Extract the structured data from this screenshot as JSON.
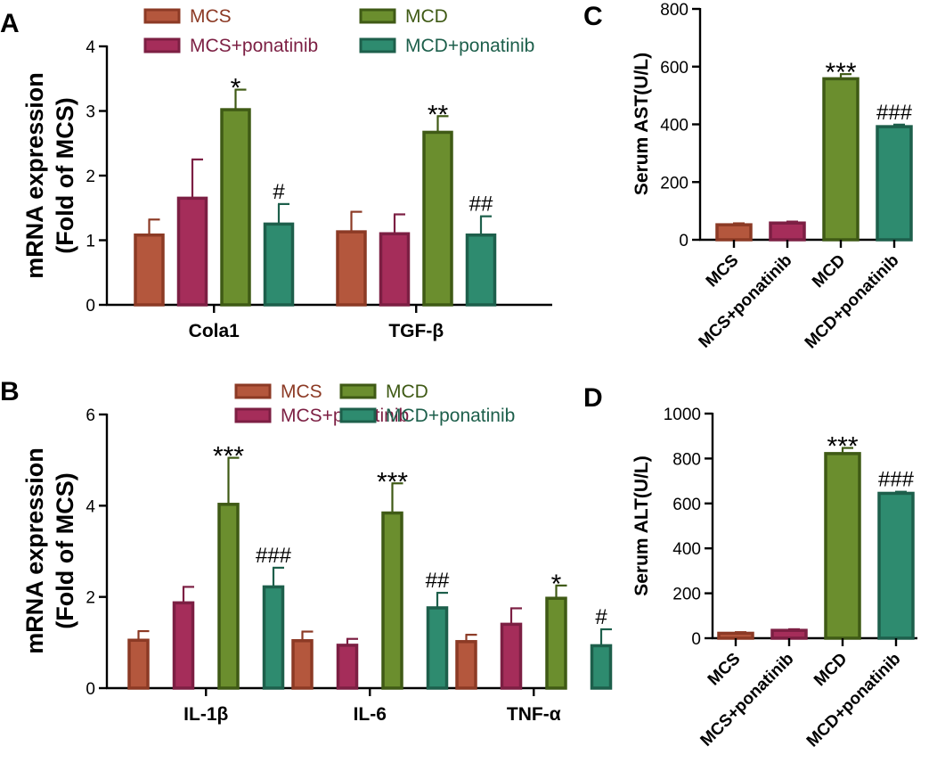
{
  "groups": [
    {
      "name": "MCS",
      "fill": "#b4573d",
      "stroke": "#8c3a25",
      "text": "#8c3a25"
    },
    {
      "name": "MCS+ponatinib",
      "fill": "#a52d5a",
      "stroke": "#7c1f43",
      "text": "#7c1f43"
    },
    {
      "name": "MCD",
      "fill": "#6b8e2e",
      "stroke": "#3f5a15",
      "text": "#3f5a15"
    },
    {
      "name": "MCD+ponatinib",
      "fill": "#2e8b6f",
      "stroke": "#1d5f4b",
      "text": "#1d5f4b"
    }
  ],
  "chart_data": [
    {
      "panel": "A",
      "type": "bar",
      "ylabel_line1": "mRNA expression",
      "ylabel_line2": "(Fold of MCS)",
      "ylim": [
        0,
        4
      ],
      "yticks": [
        0,
        1,
        2,
        3,
        4
      ],
      "categories": [
        "Cola1",
        "TGF-β"
      ],
      "series": [
        {
          "name": "MCS",
          "values": [
            1.08,
            1.13
          ],
          "errors": [
            0.24,
            0.31
          ],
          "annotations": [
            "",
            ""
          ]
        },
        {
          "name": "MCS+ponatinib",
          "values": [
            1.65,
            1.1
          ],
          "errors": [
            0.6,
            0.3
          ],
          "annotations": [
            "",
            ""
          ]
        },
        {
          "name": "MCD",
          "values": [
            3.02,
            2.67
          ],
          "errors": [
            0.31,
            0.25
          ],
          "annotations": [
            "*",
            "**"
          ]
        },
        {
          "name": "MCD+ponatinib",
          "values": [
            1.25,
            1.08
          ],
          "errors": [
            0.31,
            0.29
          ],
          "annotations": [
            "#",
            "##"
          ]
        }
      ]
    },
    {
      "panel": "B",
      "type": "bar",
      "ylabel_line1": "mRNA expression",
      "ylabel_line2": "(Fold of MCS)",
      "ylim": [
        0,
        6
      ],
      "yticks": [
        0,
        2,
        4,
        6
      ],
      "categories": [
        "IL-1β",
        "IL-6",
        "TNF-α"
      ],
      "series": [
        {
          "name": "MCS",
          "values": [
            1.05,
            1.04,
            1.02
          ],
          "errors": [
            0.2,
            0.2,
            0.15
          ],
          "annotations": [
            "",
            "",
            ""
          ]
        },
        {
          "name": "MCS+ponatinib",
          "values": [
            1.87,
            0.94,
            1.4
          ],
          "errors": [
            0.35,
            0.14,
            0.35
          ],
          "annotations": [
            "",
            "",
            ""
          ]
        },
        {
          "name": "MCD",
          "values": [
            4.03,
            3.84,
            1.97
          ],
          "errors": [
            1.02,
            0.65,
            0.28
          ],
          "annotations": [
            "***",
            "***",
            "*"
          ]
        },
        {
          "name": "MCD+ponatinib",
          "values": [
            2.22,
            1.76,
            0.93
          ],
          "errors": [
            0.42,
            0.33,
            0.36
          ],
          "annotations": [
            "###",
            "##",
            "#"
          ]
        }
      ]
    },
    {
      "panel": "C",
      "type": "bar",
      "ylabel": "Serum AST(U/L)",
      "ylim": [
        0,
        800
      ],
      "yticks": [
        0,
        200,
        400,
        600,
        800
      ],
      "categories": [
        "MCS",
        "MCS+ponatinib",
        "MCD",
        "MCD+ponatinib"
      ],
      "values": [
        52,
        58,
        558,
        392
      ],
      "errors": [
        5,
        5,
        16,
        7
      ],
      "annotations": [
        "",
        "",
        "***",
        "###"
      ]
    },
    {
      "panel": "D",
      "type": "bar",
      "ylabel": "Serum ALT(U/L)",
      "ylim": [
        0,
        1000
      ],
      "yticks": [
        0,
        200,
        400,
        600,
        800,
        1000
      ],
      "categories": [
        "MCS",
        "MCS+ponatinib",
        "MCD",
        "MCD+ponatinib"
      ],
      "values": [
        22,
        35,
        822,
        645
      ],
      "errors": [
        5,
        5,
        25,
        7
      ],
      "annotations": [
        "",
        "",
        "***",
        "###"
      ]
    }
  ]
}
